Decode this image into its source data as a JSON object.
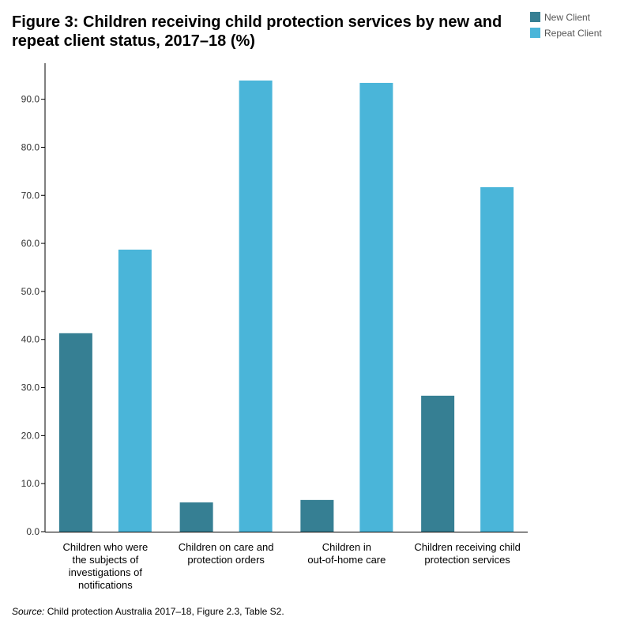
{
  "chart_data": {
    "type": "bar",
    "title": "Figure 3: Children receiving child protection services by new and repeat client status, 2017–18 (%)",
    "categories": [
      [
        "Children who were",
        "the subjects of",
        "investigations of",
        "notifications"
      ],
      [
        "Children on care and",
        "protection orders"
      ],
      [
        "Children in",
        "out-of-home care"
      ],
      [
        "Children receiving child",
        "protection services"
      ]
    ],
    "series": [
      {
        "name": "New Client",
        "color": "#367f93",
        "values": [
          41.3,
          6.1,
          6.6,
          28.3
        ]
      },
      {
        "name": "Repeat Client",
        "color": "#4ab5d9",
        "values": [
          58.7,
          93.9,
          93.4,
          71.7
        ]
      }
    ],
    "ylim": [
      0,
      97.5
    ],
    "yticks": [
      {
        "value": 0,
        "label": "0.0"
      },
      {
        "value": 10,
        "label": "10.0"
      },
      {
        "value": 20,
        "label": "20.0"
      },
      {
        "value": 30,
        "label": "30.0"
      },
      {
        "value": 40,
        "label": "40.0"
      },
      {
        "value": 50,
        "label": "50.0"
      },
      {
        "value": 60,
        "label": "60.0"
      },
      {
        "value": 70,
        "label": "70.0"
      },
      {
        "value": 80,
        "label": "80.0"
      },
      {
        "value": 90,
        "label": "90.0"
      }
    ],
    "grid": false,
    "legend": "top-right",
    "source_label": "Source:",
    "source_text": " Child protection Australia 2017–18, Figure 2.3, Table S2."
  }
}
